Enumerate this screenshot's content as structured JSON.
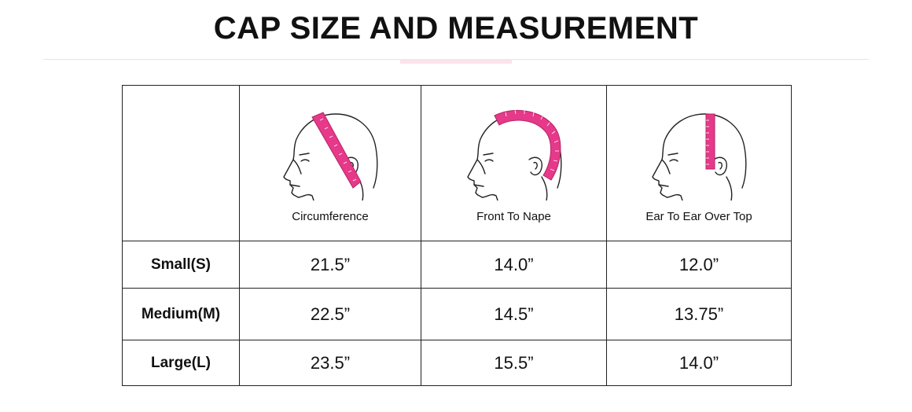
{
  "page": {
    "title": "CAP SIZE AND MEASUREMENT"
  },
  "table": {
    "headers": [
      {
        "label": "Circumference",
        "icon": "head-circumference-icon"
      },
      {
        "label": "Front To Nape",
        "icon": "head-front-to-nape-icon"
      },
      {
        "label": "Ear To Ear Over Top",
        "icon": "head-ear-to-ear-icon"
      }
    ],
    "rows": [
      {
        "size": "Small(S)",
        "values": [
          "21.5”",
          "14.0”",
          "12.0”"
        ]
      },
      {
        "size": "Medium(M)",
        "values": [
          "22.5”",
          "14.5”",
          "13.75”"
        ]
      },
      {
        "size": "Large(L)",
        "values": [
          "23.5”",
          "15.5”",
          "14.0”"
        ]
      }
    ]
  },
  "colors": {
    "tape": "#e6398a",
    "line": "#222222",
    "accent_rule": "#fbe3ec"
  }
}
